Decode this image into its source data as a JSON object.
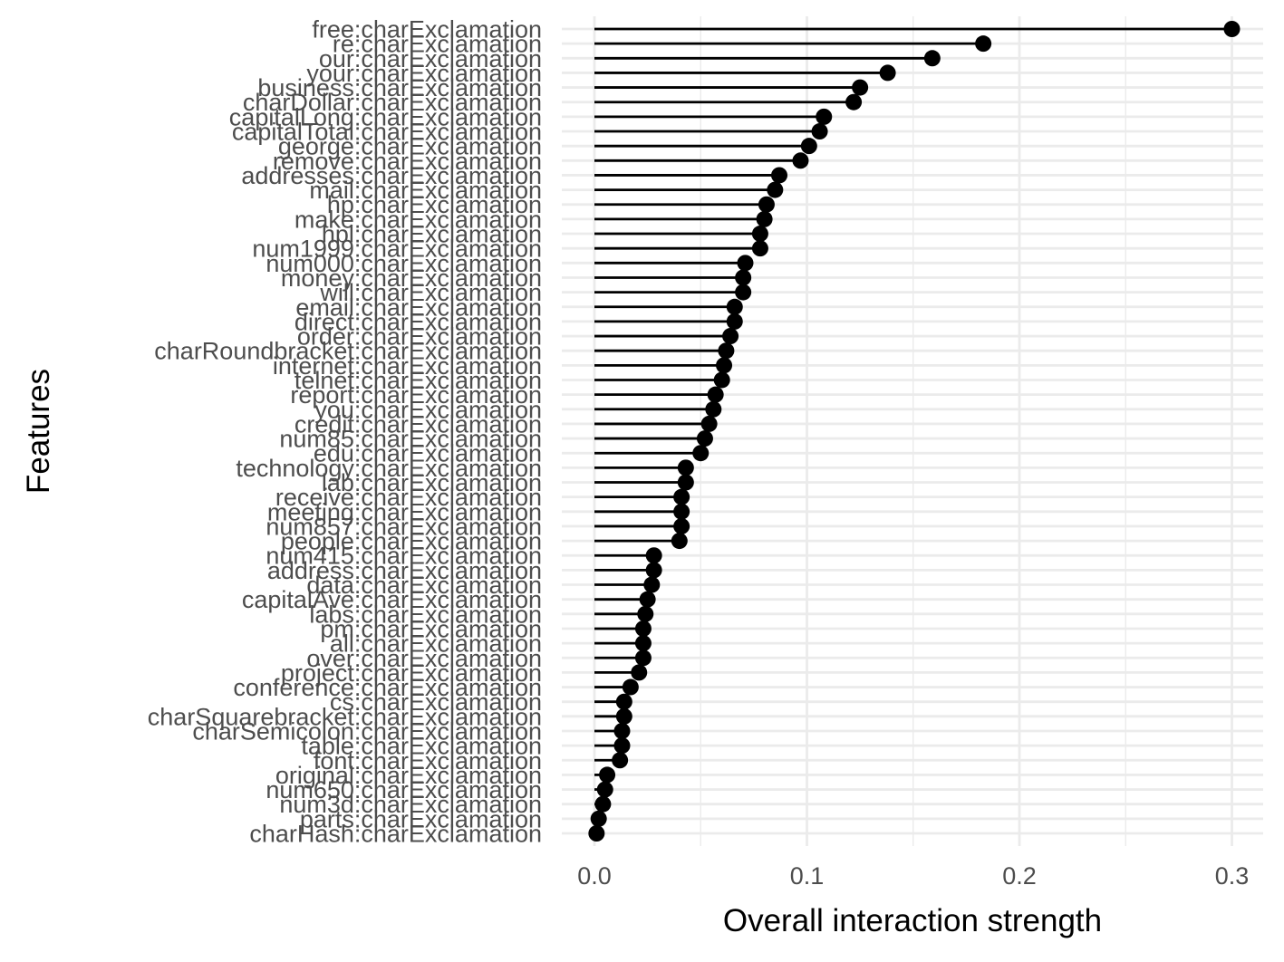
{
  "chart_data": {
    "type": "lollipop",
    "orientation": "horizontal",
    "xlabel": "Overall interaction strength",
    "ylabel": "Features",
    "xlim": [
      -0.015,
      0.3
    ],
    "x_ticks": [
      "0.0",
      "0.1",
      "0.2",
      "0.3"
    ],
    "x_tick_values": [
      0.0,
      0.1,
      0.2,
      0.3
    ],
    "grid": true,
    "legend": "none",
    "colors": {
      "mark": "#000000",
      "grid": "#ebebeb",
      "tick_text": "#4d4d4d",
      "title_text": "#000000"
    },
    "categories": [
      "free:charExclamation",
      "re:charExclamation",
      "our:charExclamation",
      "your:charExclamation",
      "business:charExclamation",
      "charDollar:charExclamation",
      "capitalLong:charExclamation",
      "capitalTotal:charExclamation",
      "george:charExclamation",
      "remove:charExclamation",
      "addresses:charExclamation",
      "mail:charExclamation",
      "hp:charExclamation",
      "make:charExclamation",
      "hpl:charExclamation",
      "num1999:charExclamation",
      "num000:charExclamation",
      "money:charExclamation",
      "will:charExclamation",
      "email:charExclamation",
      "direct:charExclamation",
      "order:charExclamation",
      "charRoundbracket:charExclamation",
      "internet:charExclamation",
      "telnet:charExclamation",
      "report:charExclamation",
      "you:charExclamation",
      "credit:charExclamation",
      "num85:charExclamation",
      "edu:charExclamation",
      "technology:charExclamation",
      "lab:charExclamation",
      "receive:charExclamation",
      "meeting:charExclamation",
      "num857:charExclamation",
      "people:charExclamation",
      "num415:charExclamation",
      "address:charExclamation",
      "data:charExclamation",
      "capitalAve:charExclamation",
      "labs:charExclamation",
      "pm:charExclamation",
      "all:charExclamation",
      "over:charExclamation",
      "project:charExclamation",
      "conference:charExclamation",
      "cs:charExclamation",
      "charSquarebracket:charExclamation",
      "charSemicolon:charExclamation",
      "table:charExclamation",
      "font:charExclamation",
      "original:charExclamation",
      "num650:charExclamation",
      "num3d:charExclamation",
      "parts:charExclamation",
      "charHash:charExclamation"
    ],
    "values": [
      0.3,
      0.183,
      0.159,
      0.138,
      0.125,
      0.122,
      0.108,
      0.106,
      0.101,
      0.097,
      0.087,
      0.085,
      0.081,
      0.08,
      0.078,
      0.078,
      0.071,
      0.07,
      0.07,
      0.066,
      0.066,
      0.064,
      0.062,
      0.061,
      0.06,
      0.057,
      0.056,
      0.054,
      0.052,
      0.05,
      0.043,
      0.043,
      0.041,
      0.041,
      0.041,
      0.04,
      0.028,
      0.028,
      0.027,
      0.025,
      0.024,
      0.023,
      0.023,
      0.023,
      0.021,
      0.017,
      0.014,
      0.014,
      0.013,
      0.013,
      0.012,
      0.006,
      0.005,
      0.004,
      0.002,
      0.001
    ]
  }
}
